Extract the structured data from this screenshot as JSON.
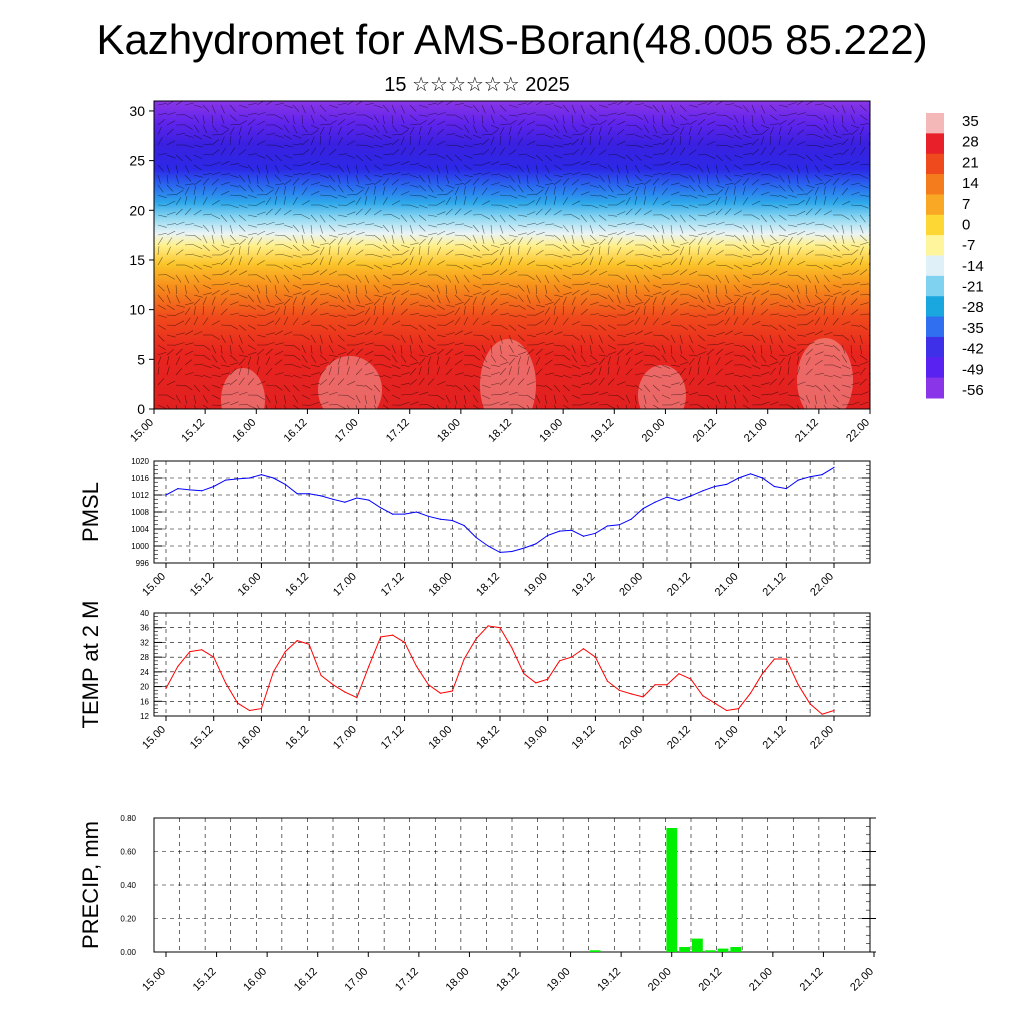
{
  "title": "Kazhydromet for AMS-Boran(48.005 85.222)",
  "subtitle": "15 ☆☆☆☆☆☆ 2025",
  "time_ticks": [
    "15.00",
    "15.12",
    "16.00",
    "16.12",
    "17.00",
    "17.12",
    "18.00",
    "18.12",
    "19.00",
    "19.12",
    "20.00",
    "20.12",
    "21.00",
    "21.12",
    "22.00"
  ],
  "chart_data": [
    {
      "type": "heatmap",
      "title": "",
      "xlabel": "",
      "ylabel": "",
      "y_ticks": [
        "0",
        "5",
        "10",
        "15",
        "20",
        "25",
        "30"
      ],
      "ylim": [
        0,
        31
      ],
      "colorbar": {
        "labels": [
          "35",
          "28",
          "21",
          "14",
          "7",
          "0",
          "-7",
          "-14",
          "-21",
          "-28",
          "-35",
          "-42",
          "-49",
          "-56"
        ],
        "range": [
          -60,
          38
        ],
        "colors": [
          "#f4b8b8",
          "#e8202a",
          "#ef4a1e",
          "#f57c1c",
          "#f9a825",
          "#fdd835",
          "#fff59d",
          "#dff0f8",
          "#7fd3f0",
          "#1aa7e0",
          "#2f6ff0",
          "#3d30e8",
          "#5a22f0",
          "#8b35e8"
        ]
      },
      "overlay": "wind barbs"
    },
    {
      "type": "line",
      "ylabel": "PMSL",
      "ylim": [
        996,
        1020
      ],
      "y_ticks": [
        "996",
        "1000",
        "1004",
        "1008",
        "1012",
        "1016",
        "1020"
      ],
      "color": "#0000ff",
      "values": [
        1012,
        1013.5,
        1013.2,
        1013,
        1014,
        1015.5,
        1015.8,
        1016,
        1016.8,
        1016,
        1014.5,
        1012.3,
        1012.3,
        1011.8,
        1011,
        1010.3,
        1011.3,
        1010.8,
        1009,
        1007.5,
        1007.5,
        1008,
        1007,
        1006.3,
        1006,
        1004.8,
        1002,
        1000,
        998.5,
        998.7,
        999.5,
        1000.5,
        1002.5,
        1003.5,
        1003.7,
        1002.3,
        1003,
        1004.7,
        1005,
        1006.3,
        1008.8,
        1010.3,
        1011.5,
        1010.7,
        1011.8,
        1013,
        1014,
        1014.5,
        1016,
        1017,
        1016,
        1014,
        1013.5,
        1015.5,
        1016.3,
        1016.8,
        1018.5
      ]
    },
    {
      "type": "line",
      "ylabel": "TEMP at 2 M",
      "ylim": [
        12,
        40
      ],
      "y_ticks": [
        "12",
        "16",
        "20",
        "24",
        "28",
        "32",
        "36",
        "40"
      ],
      "color": "#ff0000",
      "values": [
        19.5,
        25.5,
        29.5,
        30,
        28,
        21,
        15.5,
        13.5,
        14,
        24,
        29.5,
        32.5,
        31.5,
        23,
        20.5,
        18.5,
        17,
        25.5,
        33.5,
        34,
        32,
        25.5,
        20.5,
        18.2,
        18.8,
        27.5,
        33,
        36.5,
        36,
        30.5,
        23.5,
        21,
        22,
        27,
        28,
        30.3,
        28,
        21.5,
        19,
        18,
        17.2,
        20.5,
        20.5,
        23.5,
        22,
        17.5,
        15.5,
        13.5,
        14,
        18.2,
        23.5,
        27.5,
        27.5,
        20.5,
        15.3,
        12.5,
        13.5
      ]
    },
    {
      "type": "bar",
      "ylabel": "PRECIP, mm",
      "ylim": [
        0,
        0.8
      ],
      "y_ticks": [
        "0.00",
        "0.20",
        "0.40",
        "0.60",
        "0.80"
      ],
      "color": "#00ee00",
      "values": [
        0,
        0,
        0,
        0,
        0,
        0,
        0,
        0,
        0,
        0,
        0,
        0,
        0,
        0,
        0,
        0,
        0,
        0,
        0,
        0,
        0,
        0,
        0,
        0,
        0,
        0,
        0,
        0,
        0,
        0,
        0,
        0,
        0,
        0,
        0.01,
        0,
        0,
        0,
        0,
        0,
        0.74,
        0.03,
        0.08,
        0.01,
        0.02,
        0.03,
        0,
        0,
        0,
        0,
        0,
        0,
        0,
        0,
        0,
        0
      ]
    }
  ]
}
